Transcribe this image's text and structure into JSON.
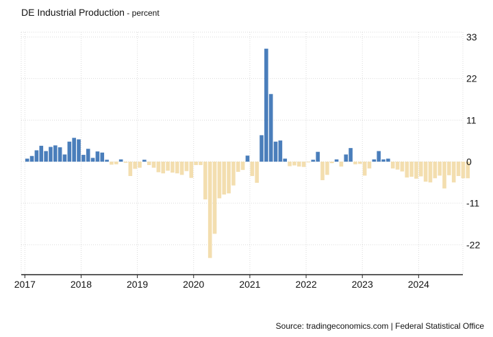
{
  "header": {
    "title": "DE Industrial Production",
    "separator": " - ",
    "unit": "percent"
  },
  "footer": {
    "source": "Source: tradingeconomics.com | Federal Statistical Office"
  },
  "colors": {
    "positive": "#4a7ebb",
    "negative": "#f3deaf",
    "grid": "#d9d9d9"
  },
  "chart_data": {
    "type": "bar",
    "title": "DE Industrial Production",
    "ylabel": "",
    "xlabel": "",
    "ylim": [
      -30,
      33
    ],
    "y_ticks": [
      33,
      22,
      11,
      0,
      -11,
      -22
    ],
    "x_ticks": [
      "2017",
      "2018",
      "2019",
      "2020",
      "2021",
      "2022",
      "2023",
      "2024"
    ],
    "grid": true,
    "y_axis_side": "right",
    "x_start": "2017-01",
    "frequency": "monthly",
    "series": [
      {
        "values": [
          0.8,
          1.5,
          3.0,
          4.2,
          2.8,
          3.9,
          4.3,
          3.8,
          1.9,
          5.3,
          6.3,
          5.9,
          1.8,
          3.4,
          1.0,
          2.7,
          2.4,
          0.5,
          -0.8,
          -0.7,
          0.6,
          -0.3,
          -3.8,
          -1.9,
          -1.6,
          0.5,
          -0.9,
          -1.6,
          -2.8,
          -3.1,
          -2.4,
          -2.9,
          -3.1,
          -3.5,
          -2.5,
          -4.3,
          -0.9,
          -0.9,
          -10.0,
          -25.5,
          -19.1,
          -9.7,
          -8.7,
          -8.4,
          -6.3,
          -2.7,
          -2.2,
          1.6,
          -3.8,
          -5.6,
          7.0,
          29.9,
          17.9,
          5.3,
          5.6,
          0.8,
          -1.2,
          -1.0,
          -1.3,
          -1.4,
          -0.2,
          0.5,
          2.6,
          -4.9,
          -3.5,
          -0.4,
          0.6,
          -1.3,
          1.9,
          3.6,
          -0.7,
          -0.6,
          -3.7,
          -1.8,
          0.6,
          2.8,
          0.6,
          0.8,
          -1.8,
          -2.1,
          -2.6,
          -4.2,
          -4.0,
          -4.5,
          -3.9,
          -5.3,
          -5.5,
          -4.4,
          -3.7,
          -7.1,
          -3.6,
          -5.5,
          -3.8,
          -4.4,
          -4.4
        ]
      }
    ]
  }
}
